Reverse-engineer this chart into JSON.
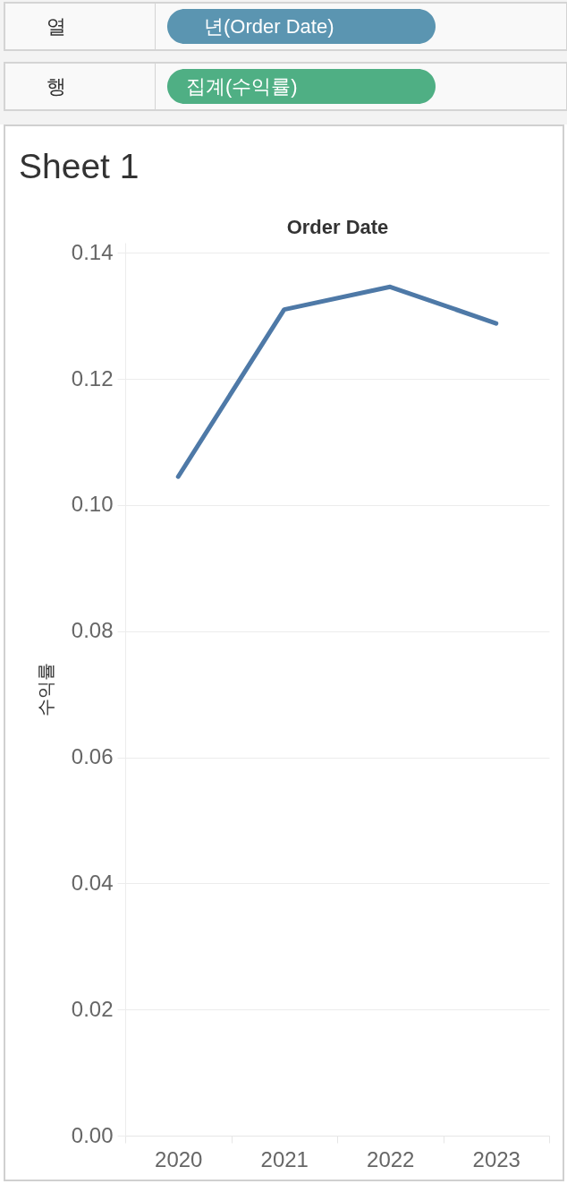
{
  "chart_data": {
    "type": "line",
    "title": "Sheet 1",
    "xlabel": "Order Date",
    "ylabel": "수익률",
    "categories": [
      "2020",
      "2021",
      "2022",
      "2023"
    ],
    "series": [
      {
        "color": "#4e79a7",
        "values": [
          0.1045,
          0.131,
          0.1346,
          0.1288
        ]
      }
    ],
    "ylim": [
      0,
      0.1416
    ],
    "yticks": [
      {
        "value": 0,
        "label": "0.00"
      },
      0.02,
      0.04,
      0.06,
      0.08,
      {
        "value": 0.1,
        "label": "0.10"
      },
      0.12,
      0.14
    ],
    "grid": "y",
    "line_style": "solid",
    "annotations": [
      "열",
      "년(Order Date)",
      "행",
      "집계(수익률)"
    ]
  }
}
